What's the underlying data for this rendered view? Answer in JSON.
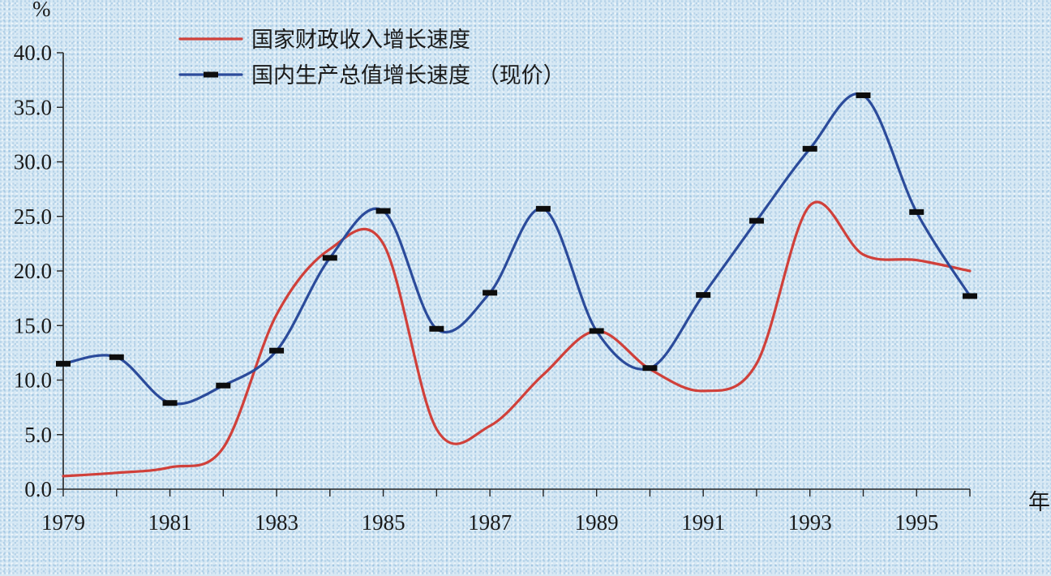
{
  "chart_data": {
    "type": "line",
    "y_unit": "%",
    "x_unit": "年",
    "ylim": [
      0,
      40
    ],
    "yticks": [
      "0.0",
      "5.0",
      "10.0",
      "15.0",
      "20.0",
      "25.0",
      "30.0",
      "35.0",
      "40.0"
    ],
    "x": [
      1979,
      1980,
      1981,
      1982,
      1983,
      1984,
      1985,
      1986,
      1987,
      1988,
      1989,
      1990,
      1991,
      1992,
      1993,
      1994,
      1995,
      1996
    ],
    "xtick_labels": [
      "1979",
      "1981",
      "1983",
      "1985",
      "1987",
      "1989",
      "1991",
      "1993",
      "1995"
    ],
    "grid": false,
    "legend_position": "top-left",
    "series": [
      {
        "name": "国家财政收入增长速度",
        "color": "#d0403a",
        "markers": false,
        "values": [
          1.2,
          1.5,
          2.0,
          3.8,
          16.0,
          22.0,
          22.5,
          5.5,
          5.8,
          10.5,
          14.5,
          11.0,
          9.0,
          11.5,
          26.0,
          21.5,
          21.0,
          20.0
        ]
      },
      {
        "name": "国内生产总值增长速度 （现价）",
        "color": "#2b4b9b",
        "markers": true,
        "values": [
          11.5,
          12.1,
          7.9,
          9.5,
          12.7,
          21.2,
          25.5,
          14.7,
          18.0,
          25.7,
          14.5,
          11.1,
          17.8,
          24.6,
          31.2,
          36.1,
          25.4,
          17.7
        ]
      }
    ]
  }
}
